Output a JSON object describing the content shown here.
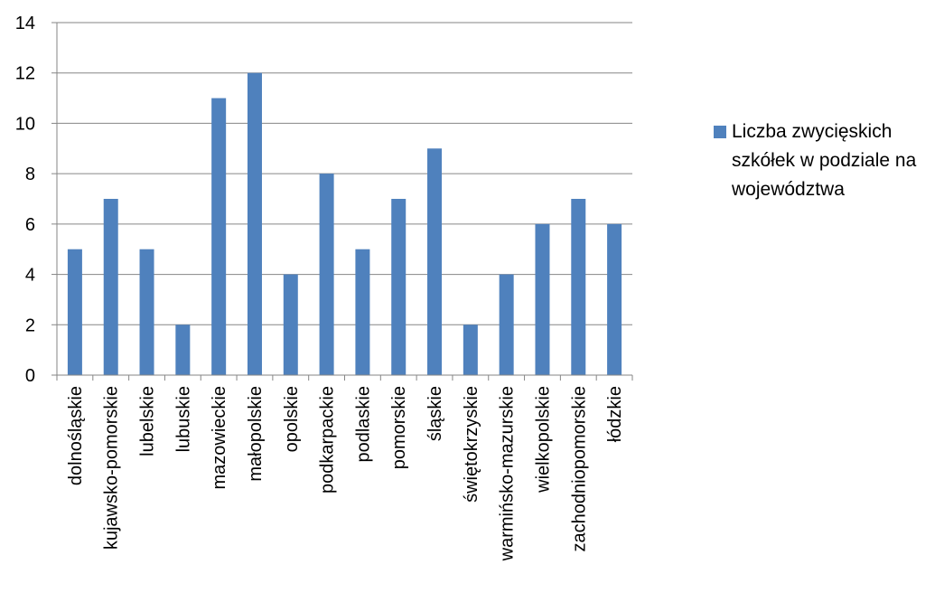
{
  "chart_data": {
    "type": "bar",
    "categories": [
      "dolnośląskie",
      "kujawsko-pomorskie",
      "lubelskie",
      "lubuskie",
      "mazowieckie",
      "małopolskie",
      "opolskie",
      "podkarpackie",
      "podlaskie",
      "pomorskie",
      "śląskie",
      "świętokrzyskie",
      "warmińsko-mazurskie",
      "wielkopolskie",
      "zachodniopomorskie",
      "łódzkie"
    ],
    "series": [
      {
        "name": "Liczba  zwycięskich szkółek w podziale na województwa",
        "values": [
          5,
          7,
          5,
          2,
          11,
          12,
          4,
          8,
          5,
          7,
          9,
          2,
          4,
          6,
          7,
          6
        ]
      }
    ],
    "ylim": [
      0,
      14
    ],
    "yticks": [
      0,
      2,
      4,
      6,
      8,
      10,
      12,
      14
    ],
    "grid": true,
    "legend_position": "right",
    "bar_color": "#4F81BD",
    "grid_color": "#868686"
  }
}
